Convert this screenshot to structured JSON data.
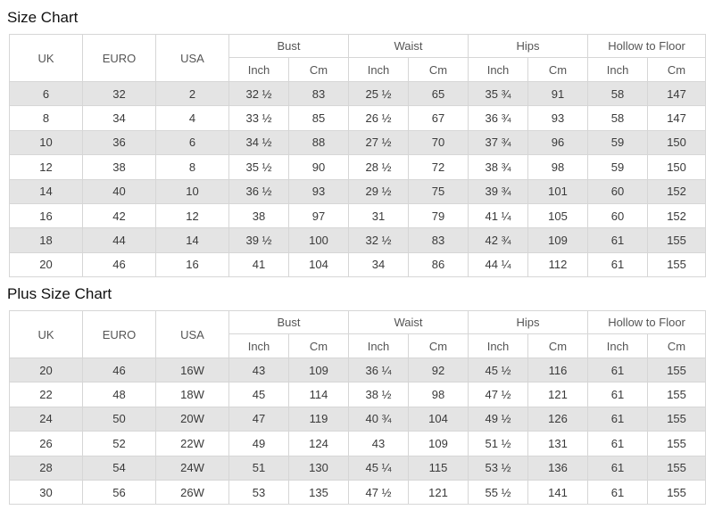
{
  "tables": [
    {
      "title": "Size Chart",
      "headers": {
        "uk": "UK",
        "euro": "EURO",
        "usa": "USA",
        "groups": [
          "Bust",
          "Waist",
          "Hips",
          "Hollow to Floor"
        ],
        "subs": [
          "Inch",
          "Cm",
          "Inch",
          "Cm",
          "Inch",
          "Cm",
          "Inch",
          "Cm"
        ]
      },
      "rows": [
        [
          "6",
          "32",
          "2",
          "32 ½",
          "83",
          "25 ½",
          "65",
          "35 ¾",
          "91",
          "58",
          "147"
        ],
        [
          "8",
          "34",
          "4",
          "33 ½",
          "85",
          "26 ½",
          "67",
          "36 ¾",
          "93",
          "58",
          "147"
        ],
        [
          "10",
          "36",
          "6",
          "34 ½",
          "88",
          "27 ½",
          "70",
          "37 ¾",
          "96",
          "59",
          "150"
        ],
        [
          "12",
          "38",
          "8",
          "35 ½",
          "90",
          "28 ½",
          "72",
          "38 ¾",
          "98",
          "59",
          "150"
        ],
        [
          "14",
          "40",
          "10",
          "36 ½",
          "93",
          "29 ½",
          "75",
          "39 ¾",
          "101",
          "60",
          "152"
        ],
        [
          "16",
          "42",
          "12",
          "38",
          "97",
          "31",
          "79",
          "41 ¼",
          "105",
          "60",
          "152"
        ],
        [
          "18",
          "44",
          "14",
          "39 ½",
          "100",
          "32 ½",
          "83",
          "42 ¾",
          "109",
          "61",
          "155"
        ],
        [
          "20",
          "46",
          "16",
          "41",
          "104",
          "34",
          "86",
          "44 ¼",
          "112",
          "61",
          "155"
        ]
      ]
    },
    {
      "title": "Plus Size Chart",
      "headers": {
        "uk": "UK",
        "euro": "EURO",
        "usa": "USA",
        "groups": [
          "Bust",
          "Waist",
          "Hips",
          "Hollow to Floor"
        ],
        "subs": [
          "Inch",
          "Cm",
          "Inch",
          "Cm",
          "Inch",
          "Cm",
          "Inch",
          "Cm"
        ]
      },
      "rows": [
        [
          "20",
          "46",
          "16W",
          "43",
          "109",
          "36 ¼",
          "92",
          "45 ½",
          "116",
          "61",
          "155"
        ],
        [
          "22",
          "48",
          "18W",
          "45",
          "114",
          "38 ½",
          "98",
          "47 ½",
          "121",
          "61",
          "155"
        ],
        [
          "24",
          "50",
          "20W",
          "47",
          "119",
          "40 ¾",
          "104",
          "49 ½",
          "126",
          "61",
          "155"
        ],
        [
          "26",
          "52",
          "22W",
          "49",
          "124",
          "43",
          "109",
          "51 ½",
          "131",
          "61",
          "155"
        ],
        [
          "28",
          "54",
          "24W",
          "51",
          "130",
          "45 ¼",
          "115",
          "53 ½",
          "136",
          "61",
          "155"
        ],
        [
          "30",
          "56",
          "26W",
          "53",
          "135",
          "47 ½",
          "121",
          "55 ½",
          "141",
          "61",
          "155"
        ]
      ]
    }
  ],
  "colors": {
    "stripe": "#e4e4e4",
    "border": "#d6d6d6",
    "text": "#3a3a3a"
  }
}
